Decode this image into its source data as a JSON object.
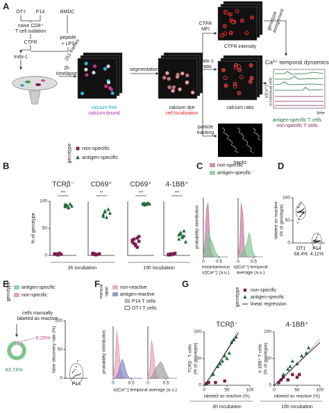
{
  "panel_labels": [
    "A",
    "B",
    "C",
    "D",
    "E",
    "F",
    "G"
  ],
  "diagram": {
    "mice": [
      "OT-I",
      "P14",
      "BMDC"
    ],
    "isolation": [
      "naive CD8⁺",
      "T cell isolation"
    ],
    "stain": "CTFR",
    "peptide": "peptide",
    "plus_lps": "+ LPS",
    "dye": "Indo-1",
    "timelapse": [
      "2h",
      "timelapse"
    ],
    "frames": "251 frames",
    "raw": [
      "calcium free",
      "calcium bound"
    ],
    "segmentation": "segmentation",
    "segmented": [
      "calcium dye",
      "cell localization"
    ],
    "ctfr_mfi": [
      "CTFR",
      "MFI"
    ],
    "ctfr_image": "CTFR intensity",
    "genotype_assignment": [
      "genotype",
      "assignment"
    ],
    "indo_ratio": [
      "Indo-1",
      "ratio"
    ],
    "ratio_image": "calcium ratio",
    "dynamics_title": "Ca²⁺ temporal dynamics",
    "dynamics_ylabel": [
      "ic[Ca²⁺]",
      "in individual cells"
    ],
    "dynamics_xlabel": "time",
    "dynamics_legend": [
      "antigen-specific T cells",
      "non-specific T cells"
    ],
    "tracking": [
      "particle",
      "tracking"
    ],
    "tracks": "tracks"
  },
  "panel_b": {
    "legend_title": "genotype",
    "ylabel": "% of genotype",
    "groups": [
      "3h incubation",
      "15h incubation"
    ]
  },
  "panel_c": {
    "ylabel": "probability distribution"
  },
  "panel_e": {
    "legend_title": "genotype"
  },
  "panel_f": {
    "legend_title": [
      "manual",
      "label"
    ],
    "ylabel": "probability distribution",
    "xlabel": "ic[Ca²⁺] temporal average (a.u.)"
  },
  "panel_g": {
    "legend_title": "genotype"
  },
  "chart_data": [
    {
      "type": "strip",
      "title": "TCRβ⁻",
      "significance": "***",
      "ylim": [
        0,
        100
      ],
      "yticks": [
        0,
        50,
        100
      ],
      "series": [
        {
          "name": "non-specific",
          "color": "#7a1d4f",
          "marker": "square",
          "values": [
            2,
            3,
            1,
            4,
            2,
            3,
            2,
            1
          ]
        },
        {
          "name": "antigen-specific",
          "color": "#1d6b3a",
          "marker": "triangle",
          "values": [
            90,
            93,
            88,
            95,
            91,
            94,
            92,
            89
          ]
        }
      ]
    },
    {
      "type": "strip",
      "title": "CD69⁺",
      "significance": "**",
      "ylim": [
        0,
        100
      ],
      "series": [
        {
          "color": "#7a1d4f",
          "marker": "square",
          "values": [
            2,
            3,
            1,
            2,
            3,
            4,
            2
          ]
        },
        {
          "color": "#1d6b3a",
          "marker": "triangle",
          "values": [
            75,
            80,
            70,
            85,
            78,
            72,
            82
          ]
        }
      ]
    },
    {
      "type": "strip",
      "title": "CD69⁺",
      "significance": "***",
      "ylim": [
        0,
        100
      ],
      "series": [
        {
          "color": "#7a1d4f",
          "marker": "square",
          "values": [
            25,
            30,
            20,
            15,
            35,
            28,
            22,
            18,
            32,
            26
          ]
        },
        {
          "color": "#1d6b3a",
          "marker": "triangle",
          "values": [
            95,
            96,
            94,
            97,
            95,
            96,
            93,
            95
          ]
        }
      ]
    },
    {
      "type": "strip",
      "title": "4-1BB⁺",
      "significance": "***",
      "ylim": [
        0,
        100
      ],
      "series": [
        {
          "color": "#7a1d4f",
          "marker": "square",
          "values": [
            2,
            1,
            3,
            2,
            4,
            1,
            2,
            3
          ]
        },
        {
          "color": "#1d6b3a",
          "marker": "triangle",
          "values": [
            30,
            40,
            35,
            45,
            25,
            38,
            42,
            33,
            36
          ]
        }
      ]
    },
    {
      "type": "density",
      "xlabel": [
        "instantaneous",
        "ic[Ca²⁺] (a.u.)"
      ],
      "xlim": [
        0,
        0.8
      ],
      "xticks": [
        0,
        0.5
      ],
      "ylim": [
        0,
        11
      ],
      "x": [
        0,
        0.05,
        0.1,
        0.15,
        0.2,
        0.25,
        0.3,
        0.35,
        0.4,
        0.45,
        0.5,
        0.55,
        0.6,
        0.65,
        0.7,
        0.75,
        0.8
      ],
      "series": [
        {
          "name": "non-specific",
          "color": "#c8709c",
          "values": [
            0,
            3,
            9,
            10,
            4,
            1,
            0.3,
            0.1,
            0,
            0,
            0,
            0,
            0,
            0,
            0,
            0,
            0
          ]
        },
        {
          "name": "antigen-specific",
          "color": "#7cc58f",
          "values": [
            0,
            1,
            3,
            5,
            4,
            3,
            2.5,
            1.5,
            0.8,
            0.3,
            0.1,
            0,
            0,
            0,
            0,
            0,
            0
          ]
        }
      ]
    },
    {
      "type": "density",
      "xlabel": [
        "ic[Ca²⁺] temporal",
        "average (a.u.)"
      ],
      "xlim": [
        0,
        0.8
      ],
      "xticks": [
        0,
        0.5
      ],
      "ylim": [
        0,
        11
      ],
      "x": [
        0,
        0.05,
        0.1,
        0.15,
        0.2,
        0.25,
        0.3,
        0.35,
        0.4,
        0.45,
        0.5,
        0.55,
        0.6,
        0.65,
        0.7,
        0.75,
        0.8
      ],
      "series": [
        {
          "color": "#c8709c",
          "values": [
            0,
            2,
            10,
            8,
            2,
            0.3,
            0,
            0,
            0,
            0,
            0,
            0,
            0,
            0,
            0,
            0,
            0
          ]
        },
        {
          "color": "#7cc58f",
          "values": [
            0,
            0,
            0.3,
            1,
            1.5,
            2,
            3,
            4.5,
            3.5,
            1.5,
            0.5,
            0.1,
            0,
            0,
            0,
            0,
            0
          ]
        }
      ]
    },
    {
      "type": "violin",
      "ylabel": [
        "labeled as reactive",
        "(% of genotype)"
      ],
      "ylim": [
        0,
        100
      ],
      "yticks": [
        0,
        50,
        100
      ],
      "categories": [
        "OT1",
        "P14"
      ],
      "distributions": [
        [
          45,
          52,
          58,
          60,
          63,
          65,
          66,
          68,
          69,
          70,
          71,
          72,
          74,
          75,
          78,
          80,
          84,
          90
        ],
        [
          0,
          1,
          2,
          3,
          3,
          4,
          4,
          5,
          6,
          8,
          12,
          18
        ]
      ],
      "means": [
        68.4,
        4.11
      ],
      "mean_labels": [
        "68.4%",
        "4.11%"
      ]
    },
    {
      "type": "pie",
      "title": [
        "cells manually",
        "labeled as reactive"
      ],
      "categories": [
        "non-specific",
        "antigen-specific"
      ],
      "values": [
        6.26,
        93.74
      ],
      "value_labels": [
        "6.26%",
        "93.74%"
      ],
      "colors": [
        "#d98cb3",
        "#7cc58f"
      ]
    },
    {
      "type": "violin",
      "ylabel": [
        "false discovery rate (%)"
      ],
      "ylim": [
        0,
        100
      ],
      "yticks": [
        0,
        50,
        100
      ],
      "categories": [
        "P14"
      ],
      "distributions": [
        [
          0,
          2,
          4,
          5,
          6,
          6,
          8,
          10,
          12,
          15,
          20,
          30
        ]
      ]
    },
    {
      "type": "density",
      "label": "P14 T cells",
      "xlim": [
        0,
        0.8
      ],
      "xticks": [
        0,
        0.5
      ],
      "ylim": [
        0,
        11
      ],
      "x": [
        0,
        0.05,
        0.1,
        0.15,
        0.2,
        0.25,
        0.3,
        0.35,
        0.4,
        0.45,
        0.5,
        0.55,
        0.6,
        0.65,
        0.7,
        0.75,
        0.8
      ],
      "series": [
        {
          "name": "non-reactive",
          "color": "#e39bb5",
          "values": [
            0,
            3,
            10,
            7,
            2,
            0.5,
            0.1,
            0,
            0,
            0,
            0,
            0,
            0,
            0,
            0,
            0,
            0
          ]
        },
        {
          "name": "antigen-reactive",
          "color": "#7b7fc9",
          "values": [
            0,
            0,
            0.5,
            1.5,
            3,
            4,
            3,
            1.5,
            0.5,
            0.1,
            0,
            0,
            0,
            0,
            0,
            0,
            0
          ]
        }
      ]
    },
    {
      "type": "density",
      "label": "OT-I T cells",
      "xlim": [
        0,
        0.8
      ],
      "xticks": [
        0,
        0.5
      ],
      "ylim": [
        0,
        11
      ],
      "x": [
        0,
        0.05,
        0.1,
        0.15,
        0.2,
        0.25,
        0.3,
        0.35,
        0.4,
        0.45,
        0.5,
        0.55,
        0.6,
        0.65,
        0.7,
        0.75,
        0.8
      ],
      "series": [
        {
          "color": "#e39bb5",
          "values": [
            0,
            2,
            8,
            6,
            2,
            0.5,
            0,
            0,
            0,
            0,
            0,
            0,
            0,
            0,
            0,
            0,
            0
          ]
        },
        {
          "color": "#9a9a9a",
          "values": [
            0,
            0,
            0.3,
            1,
            2,
            2.5,
            3,
            3.5,
            3,
            2,
            1,
            0.3,
            0,
            0,
            0,
            0,
            0
          ]
        }
      ]
    },
    {
      "type": "scatter",
      "title": "TCRβ⁻",
      "ylabel": [
        "TCRβ⁻ T cells",
        "(% of genotype)"
      ],
      "xlabel": "labeled as reactive (%)",
      "caption": "3h incubation",
      "xlim": [
        0,
        100
      ],
      "ylim": [
        0,
        100
      ],
      "xticks": [
        0,
        50,
        100
      ],
      "yticks": [
        0,
        50,
        100
      ],
      "series": [
        {
          "name": "non-specific",
          "color": "#7a1d4f",
          "marker": "square",
          "x": [
            5,
            10,
            25,
            45
          ],
          "values": [
            3,
            5,
            5,
            8
          ]
        },
        {
          "name": "antigen-specific",
          "color": "#1d6b3a",
          "marker": "triangle",
          "x": [
            20,
            30,
            40,
            50,
            55,
            60,
            65,
            70,
            35,
            45
          ],
          "values": [
            20,
            35,
            45,
            50,
            60,
            80,
            85,
            90,
            40,
            55
          ]
        },
        {
          "name": "linear regression",
          "color": "#222",
          "style": "line",
          "x": [
            0,
            75
          ],
          "values": [
            -2,
            98
          ]
        }
      ]
    },
    {
      "type": "scatter",
      "title": "4-1BB⁺",
      "ylabel": [
        "4-1BB⁺ T cells",
        "(% of genotype)"
      ],
      "xlabel": "labeled as reactive (%)",
      "caption": "15h incubation",
      "xlim": [
        0,
        100
      ],
      "ylim": [
        0,
        100
      ],
      "xticks": [
        0,
        50,
        100
      ],
      "yticks": [
        0,
        50,
        100
      ],
      "series": [
        {
          "color": "#7a1d4f",
          "marker": "square",
          "x": [
            10,
            15,
            20,
            30,
            40,
            50,
            55
          ],
          "values": [
            5,
            10,
            15,
            10,
            20,
            15,
            20
          ]
        },
        {
          "color": "#1d6b3a",
          "marker": "triangle",
          "x": [
            20,
            30,
            40,
            50,
            60,
            70,
            75,
            35
          ],
          "values": [
            20,
            30,
            45,
            40,
            55,
            60,
            70,
            35
          ]
        },
        {
          "color": "#222",
          "style": "line",
          "x": [
            0,
            100
          ],
          "values": [
            0,
            80
          ]
        }
      ]
    }
  ]
}
